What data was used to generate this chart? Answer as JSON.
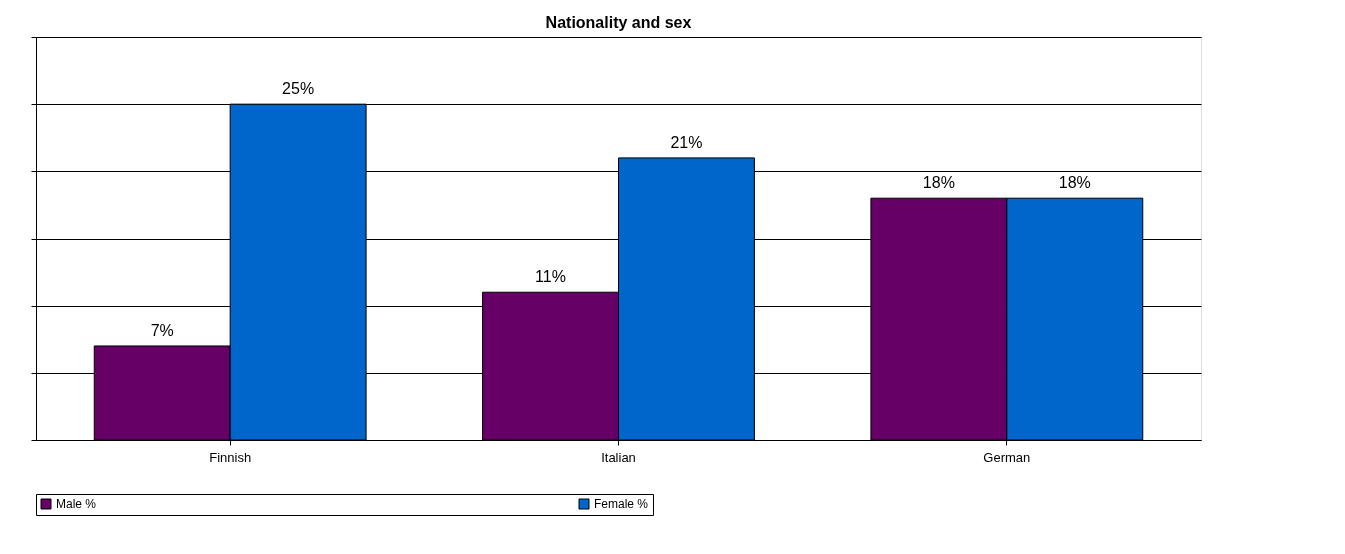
{
  "chart_data": {
    "type": "bar",
    "title": "Nationality and sex",
    "categories": [
      "Finnish",
      "Italian",
      "German"
    ],
    "series": [
      {
        "name": "Male %",
        "color": "#660066",
        "values": [
          7,
          11,
          18
        ],
        "value_labels": [
          "7%",
          "11%",
          "18%"
        ]
      },
      {
        "name": "Female %",
        "color": "#0066cc",
        "values": [
          25,
          21,
          18
        ],
        "value_labels": [
          "25%",
          "21%",
          "18%"
        ]
      }
    ],
    "ylim": [
      0,
      30
    ],
    "yticks": [
      {
        "value": 0,
        "label": null
      },
      {
        "value": 5,
        "label": null
      },
      {
        "value": 10,
        "label": null
      },
      {
        "value": 15,
        "label": null
      },
      {
        "value": 20,
        "label": null
      },
      {
        "value": 25,
        "label": null
      },
      {
        "value": 30,
        "label": null
      }
    ],
    "tick_labels": "x",
    "grid": "y",
    "legend": "bottom"
  }
}
